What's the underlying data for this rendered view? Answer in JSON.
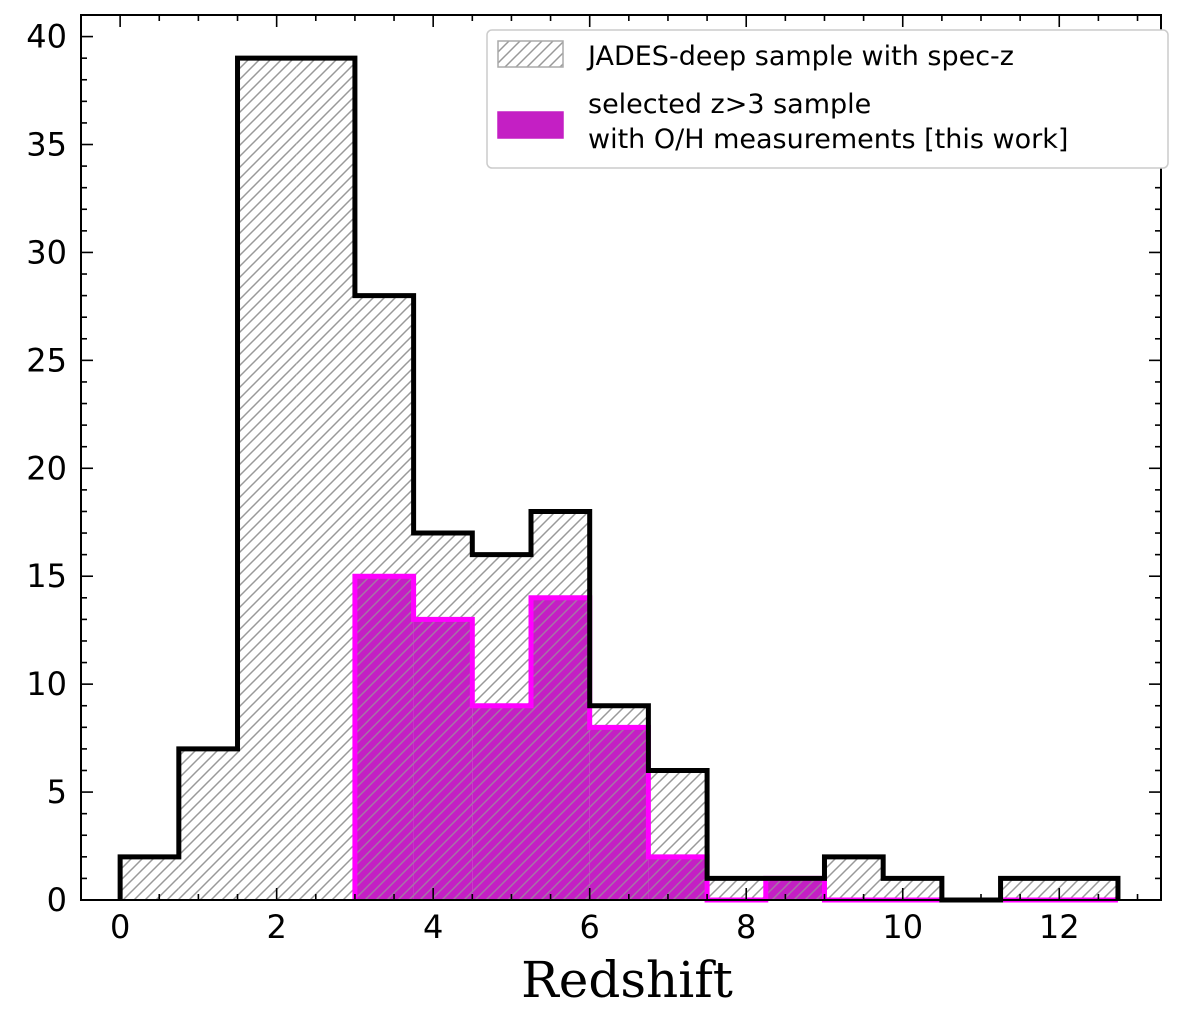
{
  "chart_data": {
    "type": "histogram",
    "title": "",
    "xlabel": "Redshift",
    "ylabel": "",
    "xlim": [
      -0.5,
      13.3
    ],
    "ylim": [
      0,
      41
    ],
    "xticks": [
      0,
      2,
      4,
      6,
      8,
      10,
      12
    ],
    "yticks": [
      0,
      5,
      10,
      15,
      20,
      25,
      30,
      35,
      40
    ],
    "bin_edges": [
      0,
      0.75,
      1.5,
      2.25,
      3.0,
      3.75,
      4.5,
      5.25,
      6.0,
      6.75,
      7.5,
      8.25,
      9.0,
      9.75,
      10.5,
      11.25,
      12.0,
      12.75
    ],
    "series": [
      {
        "name": "JADES-deep sample with spec-z",
        "style": "hatched-step",
        "edge_color": "#000000",
        "hatch_color": "#999999",
        "counts": [
          2,
          7,
          39,
          39,
          28,
          17,
          16,
          18,
          9,
          6,
          1,
          1,
          2,
          1,
          0,
          1,
          1
        ]
      },
      {
        "name_line1": "selected z>3 sample",
        "name_line2": "with O/H measurements [this work]",
        "style": "filled-step",
        "edge_color": "#ff00ff",
        "fill_color": "#c41fc4",
        "counts": [
          0,
          0,
          0,
          0,
          15,
          13,
          9,
          14,
          8,
          2,
          0,
          1,
          0,
          0,
          0,
          0,
          0
        ]
      }
    ],
    "legend_position": "top-right"
  }
}
